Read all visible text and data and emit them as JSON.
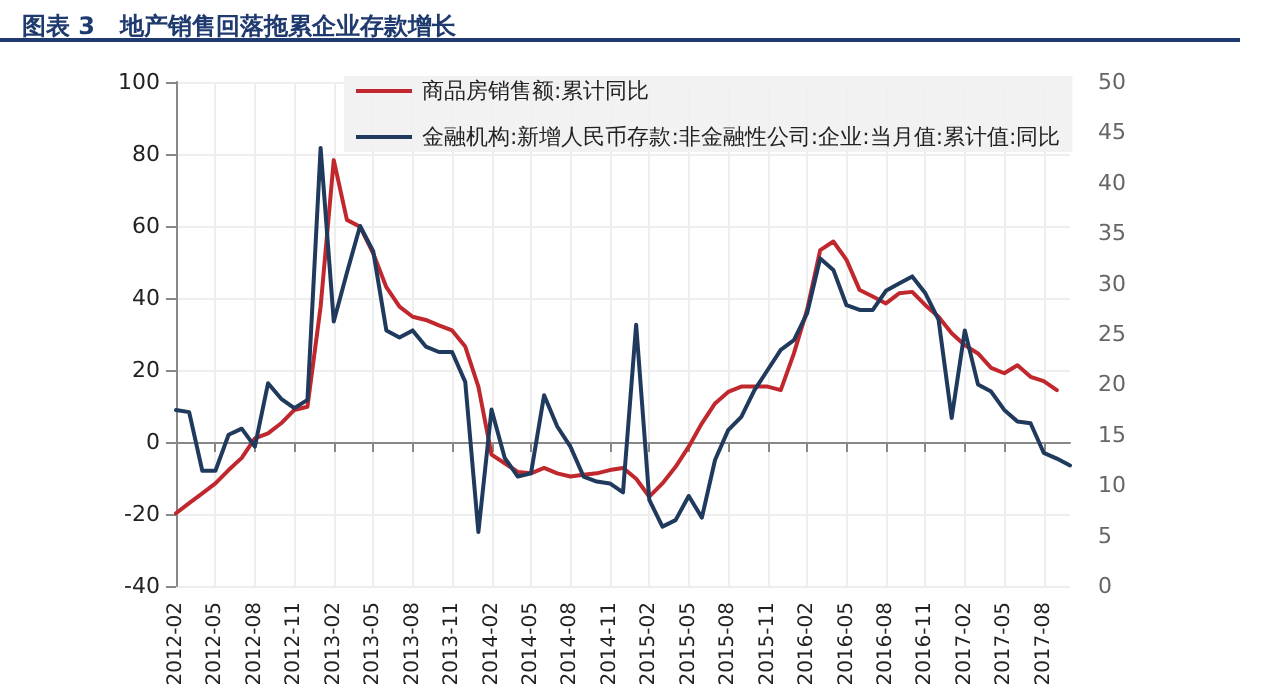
{
  "chart_data": {
    "type": "line",
    "title": "图表 3   地产销售回落拖累企业存款增长",
    "categories": [
      "2012-02",
      null,
      null,
      "2012-05",
      null,
      null,
      "2012-08",
      null,
      null,
      "2012-11",
      null,
      null,
      "2013-02",
      null,
      null,
      "2013-05",
      null,
      null,
      "2013-08",
      null,
      null,
      "2013-11",
      null,
      null,
      "2014-02",
      null,
      null,
      "2014-05",
      null,
      null,
      "2014-08",
      null,
      null,
      "2014-11",
      null,
      null,
      "2015-02",
      null,
      null,
      "2015-05",
      null,
      null,
      "2015-08",
      null,
      null,
      "2015-11",
      null,
      null,
      "2016-02",
      null,
      null,
      "2016-05",
      null,
      null,
      "2016-08",
      null,
      null,
      "2016-11",
      null,
      null,
      "2017-02",
      null,
      null,
      "2017-05",
      null,
      null,
      "2017-08",
      null,
      null
    ],
    "series": [
      {
        "name": "商品房销售额:累计同比",
        "color": "#c0282e",
        "values": [
          -19.8,
          -17,
          -14.3,
          -11.5,
          -7.8,
          -4.4,
          1,
          2.4,
          5.2,
          8.9,
          9.8,
          37.6,
          78.3,
          61.7,
          59.8,
          52.4,
          43,
          37.6,
          34.8,
          33.9,
          32.4,
          31,
          26.5,
          15.4,
          -3.5,
          -5.9,
          -8.3,
          -8.7,
          -7.2,
          -8.7,
          -9.6,
          -9.1,
          -8.7,
          -7.8,
          -7.2,
          -10.2,
          -15.2,
          -11.5,
          -6.9,
          -1.3,
          5.2,
          10.7,
          13.9,
          15.4,
          15.4,
          15.4,
          14.4,
          24.6,
          36.7,
          53.3,
          55.7,
          50.6,
          42.2,
          40.4,
          38.5,
          41.3,
          41.7,
          38,
          34.8,
          30.2,
          26.9,
          24.6,
          20.6,
          19.1,
          21.3,
          18.1,
          16.9,
          14.4,
          null
        ]
      },
      {
        "name": "金融机构:新增人民币存款:非金融性公司:企业:当月值:累计值:同比",
        "color": "#1f3a5c",
        "values": [
          8.9,
          8.3,
          -8,
          -8,
          2,
          3.7,
          -1.3,
          16.3,
          12,
          9.4,
          11.7,
          81.7,
          33.5,
          47,
          60,
          53,
          31,
          29,
          31,
          26.5,
          25,
          25,
          16.7,
          -25,
          9,
          -4.4,
          -9.6,
          -8.7,
          13,
          4.3,
          -1.3,
          -9.6,
          -11,
          -11.5,
          -14,
          32.6,
          -16.1,
          -23.5,
          -21.7,
          -15,
          -21,
          -5,
          3.3,
          7,
          14.4,
          20,
          25.6,
          28.3,
          35.7,
          51,
          47.8,
          38,
          36.7,
          36.7,
          42,
          44,
          46,
          41.3,
          34,
          6.7,
          31,
          16,
          14,
          8.9,
          5.7,
          5.2,
          -3,
          -4.6,
          -6.5
        ]
      }
    ],
    "ylim": [
      -40,
      100
    ],
    "yticks": [
      -40,
      -20,
      0,
      20,
      40,
      60,
      80,
      100
    ],
    "y2lim": [
      0,
      50
    ],
    "y2ticks": [
      0,
      5,
      10,
      15,
      20,
      25,
      30,
      35,
      40,
      45,
      50
    ],
    "grid": true,
    "legend": "top",
    "marker": "none",
    "line_style": "solid"
  }
}
